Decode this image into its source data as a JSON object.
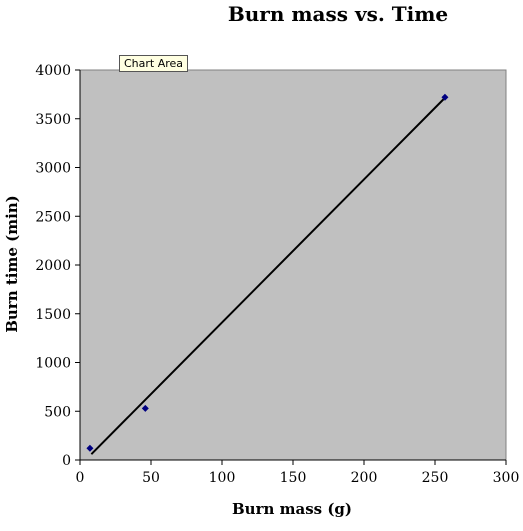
{
  "chart_data": {
    "type": "scatter",
    "title": "Burn mass vs. Time",
    "xlabel": "Burn mass (g)",
    "ylabel": "Burn time (min)",
    "xlim": [
      0,
      300
    ],
    "ylim": [
      0,
      4000
    ],
    "x_ticks": [
      0,
      50,
      100,
      150,
      200,
      250,
      300
    ],
    "y_ticks": [
      0,
      500,
      1000,
      1500,
      2000,
      2500,
      3000,
      3500,
      4000
    ],
    "grid": false,
    "legend": "none",
    "plot_background": "#c0c0c0",
    "series": [
      {
        "points": [
          [
            7,
            120
          ],
          [
            46,
            530
          ],
          [
            257,
            3720
          ]
        ],
        "color": "#000080",
        "marker": "diamond"
      }
    ],
    "trendline": {
      "type": "linear",
      "x": [
        8,
        256
      ],
      "y": [
        60,
        3700
      ],
      "color": "#000000"
    }
  },
  "tooltip": {
    "label": "Chart Area"
  }
}
